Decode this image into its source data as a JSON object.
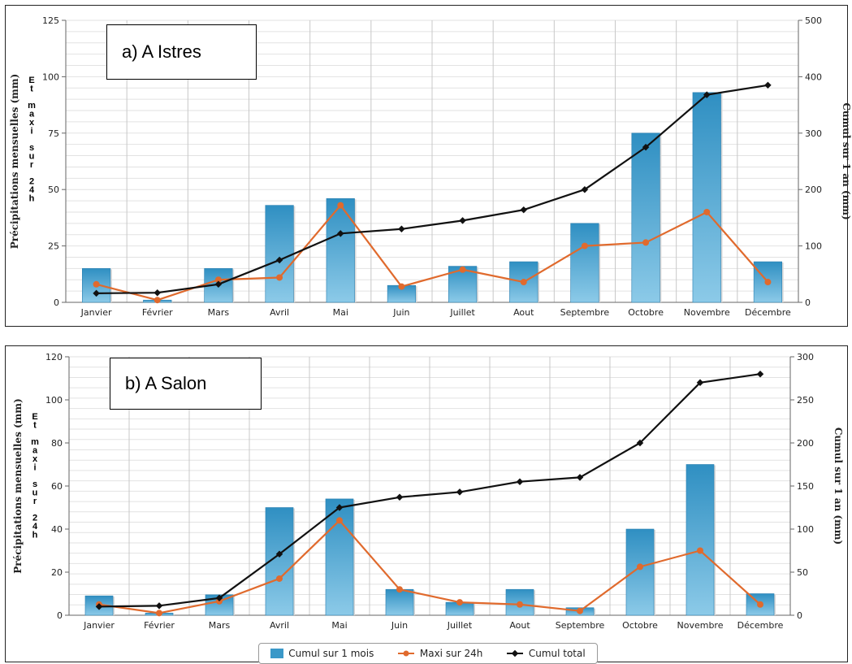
{
  "colors": {
    "bar": "#3a98c8",
    "maxi": "#e06a2d",
    "cumul": "#111111"
  },
  "legend": {
    "items": [
      {
        "label": "Cumul sur 1 mois",
        "kind": "bar"
      },
      {
        "label": "Maxi sur 24h",
        "kind": "maxi"
      },
      {
        "label": "Cumul total",
        "kind": "cumul"
      }
    ]
  },
  "left_label_vertical": "Et maxi sur 24h",
  "chart_data": [
    {
      "type": "bar",
      "panel_title": "a) A Istres",
      "categories": [
        "Janvier",
        "Février",
        "Mars",
        "Avril",
        "Mai",
        "Juin",
        "Juillet",
        "Aout",
        "Septembre",
        "Octobre",
        "Novembre",
        "Décembre"
      ],
      "ylabel": "Précipitations mensuelles (mm)",
      "ylabel_extra": "Et maxi sur 24h",
      "y2label": "Cumul sur 1 an (mm)",
      "ylim": [
        0,
        125
      ],
      "yticks": [
        0,
        25,
        50,
        75,
        100,
        125
      ],
      "y2lim": [
        0,
        500
      ],
      "y2ticks": [
        0,
        100,
        200,
        300,
        400,
        500
      ],
      "series": [
        {
          "name": "Cumul sur 1 mois",
          "type": "bar",
          "axis": "left",
          "values": [
            15,
            1,
            15,
            43,
            46,
            7.5,
            16,
            18,
            35,
            75,
            93,
            18
          ]
        },
        {
          "name": "Maxi sur 24h",
          "type": "line",
          "axis": "left",
          "values": [
            8,
            1,
            10,
            11,
            43,
            7,
            14.5,
            9,
            25,
            26.5,
            40,
            9
          ]
        },
        {
          "name": "Cumul total",
          "type": "line",
          "axis": "right",
          "values": [
            16,
            17,
            32,
            75,
            122,
            130,
            145,
            164,
            200,
            275,
            368,
            385
          ]
        }
      ],
      "legend_position": "bottom"
    },
    {
      "type": "bar",
      "panel_title": "b) A Salon",
      "categories": [
        "Janvier",
        "Février",
        "Mars",
        "Avril",
        "Mai",
        "Juin",
        "Juillet",
        "Aout",
        "Septembre",
        "Octobre",
        "Novembre",
        "Décembre"
      ],
      "ylabel": "Précipitations mensuelles (mm)",
      "ylabel_extra": "Et maxi sur 24h",
      "y2label": "Cumul sur 1 an (mm)",
      "ylim": [
        0,
        120
      ],
      "yticks": [
        0,
        20,
        40,
        60,
        80,
        100,
        120
      ],
      "y2lim": [
        0,
        300
      ],
      "y2ticks": [
        0,
        50,
        100,
        150,
        200,
        250,
        300
      ],
      "series": [
        {
          "name": "Cumul sur 1 mois",
          "type": "bar",
          "axis": "left",
          "values": [
            9,
            1,
            9.5,
            50,
            54,
            12,
            6,
            12,
            3.5,
            40,
            70,
            10
          ]
        },
        {
          "name": "Maxi sur 24h",
          "type": "line",
          "axis": "left",
          "values": [
            5,
            1,
            6.5,
            17,
            44,
            12,
            6,
            5,
            2,
            22.5,
            30,
            5
          ]
        },
        {
          "name": "Cumul total",
          "type": "line",
          "axis": "right",
          "values": [
            10,
            11,
            20,
            71,
            125,
            137,
            143,
            155,
            160,
            200,
            270,
            280
          ]
        }
      ],
      "legend_position": "bottom"
    }
  ]
}
